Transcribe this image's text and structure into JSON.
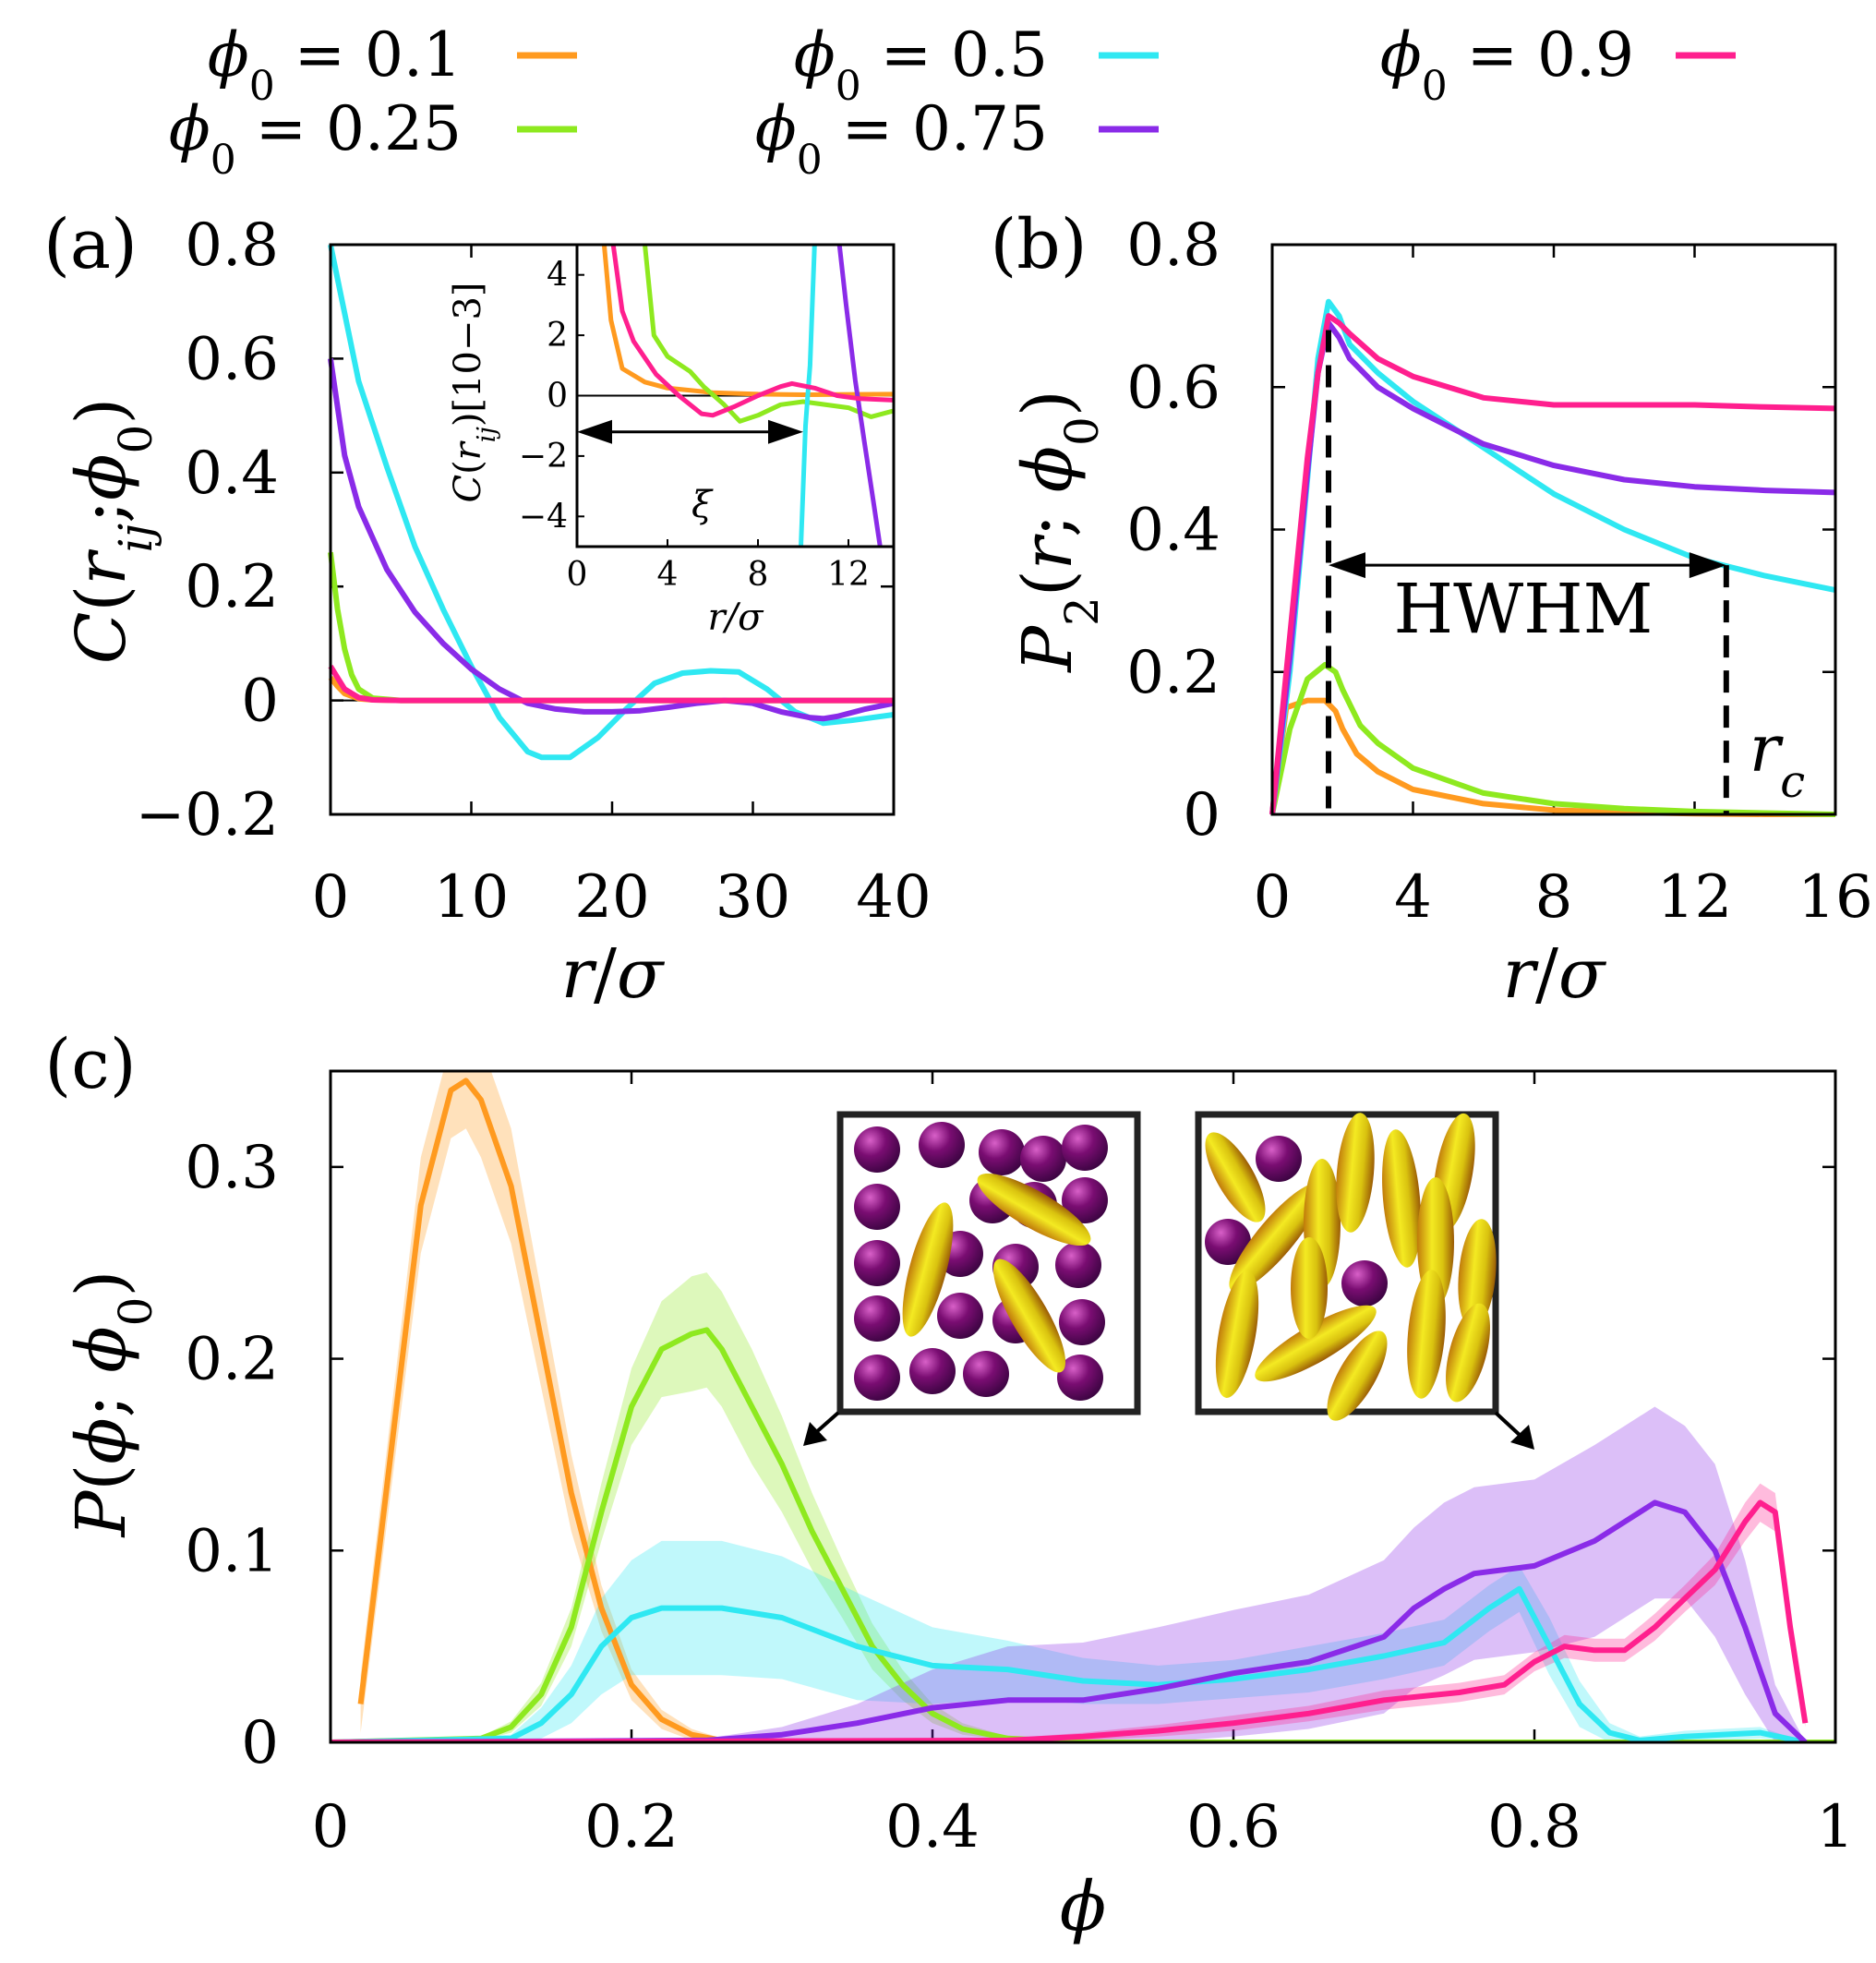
{
  "figure": {
    "legend": {
      "entries": [
        {
          "label": "ϕ0 = 0.1",
          "color": "#ff9a1f"
        },
        {
          "label": "ϕ0 = 0.25",
          "color": "#8ee91f"
        },
        {
          "label": "ϕ0 = 0.5",
          "color": "#2fe8f2"
        },
        {
          "label": "ϕ0 = 0.75",
          "color": "#8a2be8"
        },
        {
          "label": "ϕ0 = 0.9",
          "color": "#ff1f8e"
        }
      ]
    },
    "panel_labels": [
      "(a)",
      "(b)",
      "(c)"
    ],
    "annotations": {
      "xi": "ξ",
      "hwhm": "HWHM",
      "rc": "r_c"
    }
  },
  "chart_data": [
    {
      "panel": "(a)",
      "type": "line",
      "xlabel": "r/σ",
      "ylabel": "C(r_ij; ϕ0)",
      "xlim": [
        0,
        40
      ],
      "ylim": [
        -0.2,
        0.8
      ],
      "xticks": [
        "0",
        "10",
        "20",
        "30",
        "40"
      ],
      "yticks": [
        "−0.2",
        "0",
        "0.2",
        "0.4",
        "0.6",
        "0.8"
      ],
      "series": [
        {
          "name": "ϕ0 = 0.1",
          "color": "#ff9a1f",
          "x": [
            0,
            0.5,
            1,
            2,
            3,
            5,
            10,
            20,
            30,
            40
          ],
          "y": [
            0.04,
            0.025,
            0.012,
            0.003,
            0.001,
            0,
            0,
            0,
            0,
            0
          ]
        },
        {
          "name": "ϕ0 = 0.25",
          "color": "#8ee91f",
          "x": [
            0,
            0.5,
            1,
            1.5,
            2,
            3,
            5,
            10,
            20,
            30,
            40
          ],
          "y": [
            0.26,
            0.16,
            0.09,
            0.045,
            0.02,
            0.004,
            0,
            0,
            0,
            0,
            0
          ]
        },
        {
          "name": "ϕ0 = 0.5",
          "color": "#2fe8f2",
          "x": [
            0,
            2,
            4,
            6,
            8,
            10,
            12,
            14,
            15,
            17,
            19,
            21,
            23,
            25,
            27,
            29,
            31,
            33,
            35,
            37,
            40
          ],
          "y": [
            0.8,
            0.56,
            0.41,
            0.27,
            0.16,
            0.06,
            -0.03,
            -0.09,
            -0.1,
            -0.1,
            -0.065,
            -0.015,
            0.03,
            0.048,
            0.052,
            0.05,
            0.02,
            -0.02,
            -0.04,
            -0.035,
            -0.025
          ]
        },
        {
          "name": "ϕ0 = 0.75",
          "color": "#8a2be8",
          "x": [
            0,
            1,
            2,
            4,
            6,
            8,
            10,
            12,
            14,
            16,
            18,
            20,
            22,
            24,
            26,
            28,
            30,
            32,
            34,
            35,
            36,
            38,
            40
          ],
          "y": [
            0.6,
            0.43,
            0.34,
            0.23,
            0.155,
            0.1,
            0.055,
            0.02,
            -0.005,
            -0.015,
            -0.02,
            -0.02,
            -0.018,
            -0.012,
            -0.005,
            0,
            -0.005,
            -0.02,
            -0.03,
            -0.032,
            -0.028,
            -0.015,
            -0.005
          ]
        },
        {
          "name": "ϕ0 = 0.9",
          "color": "#ff1f8e",
          "x": [
            0,
            0.5,
            1,
            2,
            3,
            5,
            10,
            20,
            30,
            40
          ],
          "y": [
            0.06,
            0.04,
            0.02,
            0.005,
            0.001,
            0,
            0,
            0,
            0,
            0
          ]
        }
      ],
      "inset": {
        "xlabel": "r/σ",
        "ylabel": "C(r_ij)[10^−3]",
        "xlim": [
          0,
          14
        ],
        "ylim": [
          -5,
          5
        ],
        "xticks": [
          "0",
          "4",
          "8",
          "12"
        ],
        "yticks": [
          "−4",
          "−2",
          "0",
          "2",
          "4"
        ],
        "series": [
          {
            "name": "ϕ0 = 0.1",
            "color": "#ff9a1f",
            "x": [
              1.2,
              1.5,
              2,
              3,
              4,
              6,
              8,
              10,
              14
            ],
            "y": [
              5,
              2.5,
              0.9,
              0.45,
              0.25,
              0.1,
              0.05,
              0.03,
              0.05
            ]
          },
          {
            "name": "ϕ0 = 0.25",
            "color": "#8ee91f",
            "x": [
              3,
              3.4,
              4,
              5,
              5.6,
              6.5,
              7.2,
              8,
              9,
              10,
              12,
              13,
              14
            ],
            "y": [
              5,
              2.0,
              1.3,
              0.8,
              0.3,
              -0.3,
              -0.85,
              -0.65,
              -0.3,
              -0.2,
              -0.4,
              -0.7,
              -0.5
            ]
          },
          {
            "name": "ϕ0 = 0.5",
            "color": "#2fe8f2",
            "x": [
              9.9,
              10.1,
              10.2,
              10.3,
              10.5
            ],
            "y": [
              -5,
              -1,
              0,
              1,
              5
            ]
          },
          {
            "name": "ϕ0 = 0.75",
            "color": "#8a2be8",
            "x": [
              11.6,
              11.9,
              12.3,
              12.7,
              13.1,
              13.4
            ],
            "y": [
              5,
              3,
              0.5,
              -1.5,
              -3.5,
              -5
            ]
          },
          {
            "name": "ϕ0 = 0.9",
            "color": "#ff1f8e",
            "x": [
              1.6,
              2,
              2.5,
              3.5,
              4.5,
              5.5,
              6,
              7,
              8,
              9,
              9.5,
              10.5,
              11.5,
              12.5,
              14
            ],
            "y": [
              5,
              2.8,
              1.8,
              0.7,
              0,
              -0.6,
              -0.65,
              -0.35,
              0,
              0.3,
              0.4,
              0.25,
              0,
              -0.1,
              -0.15
            ]
          }
        ]
      }
    },
    {
      "panel": "(b)",
      "type": "line",
      "xlabel": "r/σ",
      "ylabel": "P_2(r; ϕ0)",
      "xlim": [
        0,
        16
      ],
      "ylim": [
        0,
        0.8
      ],
      "xticks": [
        "0",
        "4",
        "8",
        "12",
        "16"
      ],
      "yticks": [
        "0",
        "0.2",
        "0.4",
        "0.6",
        "0.8"
      ],
      "markers": {
        "peak_r": 1.6,
        "rc": 12.9,
        "hwhm_y": 0.35
      },
      "series": [
        {
          "name": "ϕ0 = 0.1",
          "color": "#ff9a1f",
          "x": [
            0,
            0.4,
            1.0,
            1.5,
            1.8,
            2.0,
            2.4,
            3,
            4,
            6,
            8,
            10,
            12,
            14,
            16
          ],
          "y": [
            0,
            0.15,
            0.16,
            0.16,
            0.145,
            0.12,
            0.085,
            0.06,
            0.035,
            0.015,
            0.006,
            0.003,
            0.001,
            0,
            0
          ]
        },
        {
          "name": "ϕ0 = 0.25",
          "color": "#8ee91f",
          "x": [
            0,
            0.5,
            1.0,
            1.5,
            1.8,
            2.0,
            2.5,
            3,
            4,
            6,
            8,
            10,
            12,
            14,
            16
          ],
          "y": [
            0,
            0.12,
            0.19,
            0.21,
            0.2,
            0.175,
            0.125,
            0.1,
            0.065,
            0.03,
            0.015,
            0.008,
            0.004,
            0.002,
            0
          ]
        },
        {
          "name": "ϕ0 = 0.5",
          "color": "#2fe8f2",
          "x": [
            0,
            0.5,
            1.0,
            1.3,
            1.6,
            1.9,
            2.2,
            3,
            4,
            6,
            8,
            10,
            12,
            14,
            16
          ],
          "y": [
            0,
            0.2,
            0.47,
            0.64,
            0.72,
            0.7,
            0.66,
            0.62,
            0.58,
            0.515,
            0.45,
            0.4,
            0.36,
            0.335,
            0.315
          ]
        },
        {
          "name": "ϕ0 = 0.75",
          "color": "#8a2be8",
          "x": [
            0,
            0.5,
            1.0,
            1.3,
            1.6,
            1.9,
            2.2,
            3,
            4,
            6,
            8,
            10,
            12,
            14,
            16
          ],
          "y": [
            0,
            0.22,
            0.48,
            0.62,
            0.69,
            0.67,
            0.64,
            0.6,
            0.57,
            0.52,
            0.49,
            0.47,
            0.46,
            0.455,
            0.452
          ]
        },
        {
          "name": "ϕ0 = 0.9",
          "color": "#ff1f8e",
          "x": [
            0,
            0.5,
            1.0,
            1.3,
            1.6,
            1.9,
            2.2,
            3,
            4,
            6,
            8,
            10,
            12,
            14,
            16
          ],
          "y": [
            0,
            0.25,
            0.5,
            0.62,
            0.7,
            0.69,
            0.675,
            0.64,
            0.615,
            0.585,
            0.575,
            0.575,
            0.575,
            0.572,
            0.57
          ]
        }
      ]
    },
    {
      "panel": "(c)",
      "type": "line",
      "xlabel": "ϕ",
      "ylabel": "P(ϕ; ϕ0)",
      "xlim": [
        0,
        1
      ],
      "ylim": [
        0,
        0.35
      ],
      "xticks": [
        "0",
        "0.2",
        "0.4",
        "0.6",
        "0.8",
        "1"
      ],
      "yticks": [
        "0",
        "0.1",
        "0.2",
        "0.3"
      ],
      "series": [
        {
          "name": "ϕ0 = 0.1",
          "color": "#ff9a1f",
          "x": [
            0.02,
            0.04,
            0.06,
            0.08,
            0.09,
            0.1,
            0.12,
            0.14,
            0.16,
            0.18,
            0.2,
            0.22,
            0.24,
            0.26,
            0.28,
            0.3,
            1
          ],
          "y": [
            0.02,
            0.15,
            0.28,
            0.34,
            0.345,
            0.335,
            0.29,
            0.21,
            0.13,
            0.07,
            0.03,
            0.012,
            0.004,
            0.001,
            0,
            0,
            0
          ],
          "band": [
            0.015,
            0.02,
            0.025,
            0.025,
            0.025,
            0.03,
            0.03,
            0.025,
            0.02,
            0.012,
            0.008,
            0.005,
            0.003,
            0.001,
            0,
            0,
            0
          ]
        },
        {
          "name": "ϕ0 = 0.25",
          "color": "#8ee91f",
          "x": [
            0,
            0.1,
            0.12,
            0.14,
            0.16,
            0.18,
            0.2,
            0.22,
            0.24,
            0.25,
            0.26,
            0.28,
            0.3,
            0.32,
            0.34,
            0.36,
            0.38,
            0.4,
            0.42,
            0.45,
            0.5,
            1
          ],
          "y": [
            0,
            0.002,
            0.008,
            0.025,
            0.06,
            0.12,
            0.175,
            0.205,
            0.213,
            0.215,
            0.205,
            0.175,
            0.145,
            0.11,
            0.08,
            0.05,
            0.03,
            0.015,
            0.007,
            0.002,
            0,
            0
          ],
          "band": [
            0,
            0.001,
            0.003,
            0.006,
            0.01,
            0.015,
            0.02,
            0.025,
            0.03,
            0.03,
            0.03,
            0.03,
            0.025,
            0.02,
            0.015,
            0.012,
            0.008,
            0.005,
            0.003,
            0.001,
            0,
            0
          ]
        },
        {
          "name": "ϕ0 = 0.5",
          "color": "#2fe8f2",
          "x": [
            0,
            0.12,
            0.14,
            0.16,
            0.18,
            0.2,
            0.22,
            0.26,
            0.3,
            0.35,
            0.4,
            0.45,
            0.5,
            0.55,
            0.6,
            0.65,
            0.7,
            0.74,
            0.77,
            0.79,
            0.81,
            0.83,
            0.85,
            0.87,
            0.9,
            0.95,
            0.98
          ],
          "y": [
            0,
            0.002,
            0.01,
            0.025,
            0.05,
            0.065,
            0.07,
            0.07,
            0.065,
            0.05,
            0.04,
            0.038,
            0.032,
            0.03,
            0.033,
            0.038,
            0.045,
            0.052,
            0.07,
            0.08,
            0.05,
            0.02,
            0.005,
            0.001,
            0.003,
            0.005,
            0.0
          ],
          "band": [
            0,
            0.002,
            0.008,
            0.015,
            0.025,
            0.03,
            0.035,
            0.035,
            0.032,
            0.028,
            0.02,
            0.015,
            0.012,
            0.01,
            0.01,
            0.012,
            0.012,
            0.012,
            0.012,
            0.012,
            0.015,
            0.012,
            0.005,
            0.002,
            0.003,
            0.003,
            0
          ]
        },
        {
          "name": "ϕ0 = 0.75",
          "color": "#8a2be8",
          "x": [
            0,
            0.25,
            0.3,
            0.35,
            0.4,
            0.45,
            0.5,
            0.55,
            0.6,
            0.65,
            0.7,
            0.72,
            0.74,
            0.76,
            0.8,
            0.84,
            0.86,
            0.88,
            0.9,
            0.92,
            0.94,
            0.96,
            0.98
          ],
          "y": [
            0,
            0.001,
            0.004,
            0.01,
            0.018,
            0.022,
            0.022,
            0.028,
            0.036,
            0.042,
            0.055,
            0.07,
            0.08,
            0.088,
            0.092,
            0.105,
            0.115,
            0.125,
            0.12,
            0.1,
            0.06,
            0.015,
            0.0
          ],
          "band": [
            0,
            0.001,
            0.004,
            0.01,
            0.02,
            0.028,
            0.03,
            0.032,
            0.033,
            0.035,
            0.04,
            0.042,
            0.045,
            0.045,
            0.045,
            0.05,
            0.05,
            0.05,
            0.045,
            0.045,
            0.035,
            0.015,
            0
          ]
        },
        {
          "name": "ϕ0 = 0.9",
          "color": "#ff1f8e",
          "x": [
            0,
            0.45,
            0.5,
            0.55,
            0.6,
            0.65,
            0.7,
            0.75,
            0.78,
            0.8,
            0.82,
            0.84,
            0.86,
            0.88,
            0.9,
            0.92,
            0.94,
            0.95,
            0.96,
            0.97,
            0.98
          ],
          "y": [
            0,
            0.001,
            0.003,
            0.006,
            0.01,
            0.015,
            0.022,
            0.026,
            0.03,
            0.042,
            0.05,
            0.048,
            0.048,
            0.06,
            0.075,
            0.09,
            0.115,
            0.125,
            0.12,
            0.06,
            0.01
          ],
          "band": [
            0,
            0.001,
            0.002,
            0.003,
            0.004,
            0.004,
            0.005,
            0.005,
            0.005,
            0.005,
            0.006,
            0.006,
            0.006,
            0.007,
            0.007,
            0.008,
            0.01,
            0.01,
            0.01,
            0.008,
            0.002
          ]
        }
      ]
    }
  ]
}
